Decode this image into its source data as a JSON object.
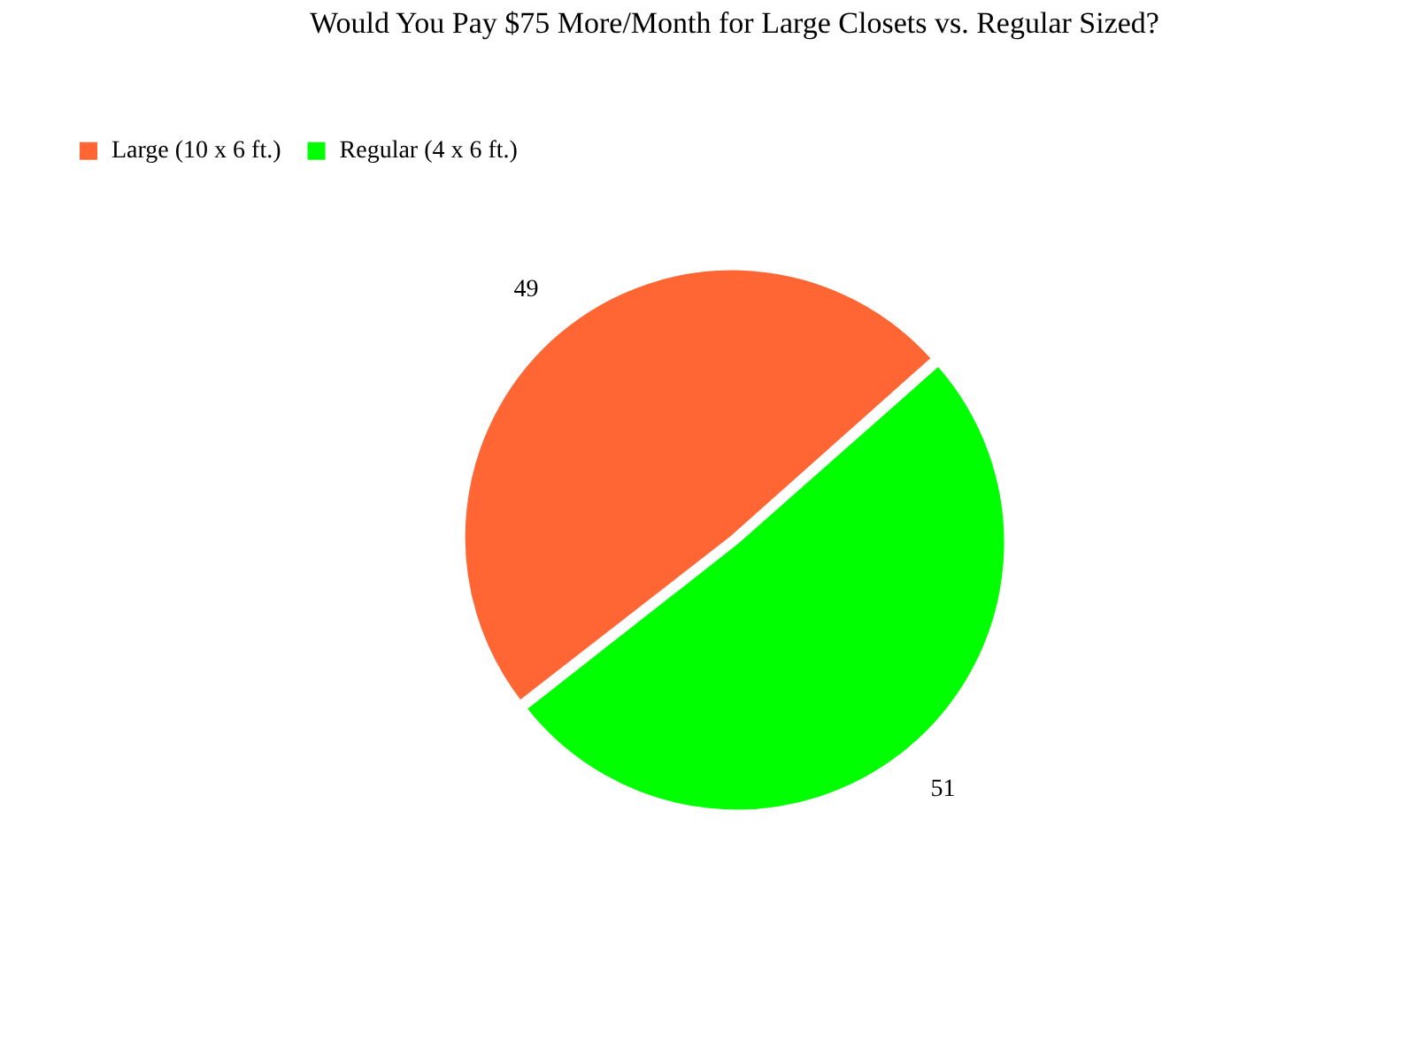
{
  "chart_data": {
    "type": "pie",
    "title": "Would You Pay $75 More/Month for Large Closets vs. Regular Sized?",
    "categories": [
      "Large (10 x 6 ft.)",
      "Regular (4 x 6 ft.)"
    ],
    "values": [
      49,
      51
    ],
    "colors": [
      "#ff6633",
      "#00ff00"
    ],
    "data_labels": true,
    "legend": "top left"
  }
}
